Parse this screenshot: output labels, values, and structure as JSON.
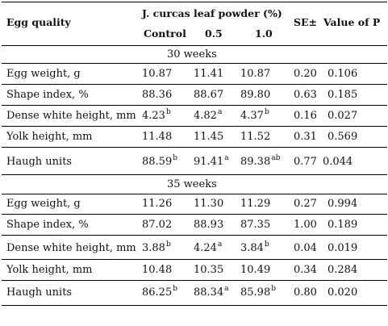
{
  "header": {
    "egg_quality": "Egg quality",
    "group": "J. curcas leaf powder (%)",
    "control": "Control",
    "c05": "0.5",
    "c10": "1.0",
    "se": "SE±",
    "p": "Value of P"
  },
  "sections": [
    {
      "title": "30 weeks",
      "rows": [
        {
          "label": "Egg weight, g",
          "control": "10.87",
          "cs": "",
          "a": "11.41",
          "as": "",
          "b": "10.87",
          "bs": "",
          "se": "0.20",
          "p": "0.106"
        },
        {
          "label": "Shape index, %",
          "control": "88.36",
          "cs": "",
          "a": "88.67",
          "as": "",
          "b": "89.80",
          "bs": "",
          "se": "0.63",
          "p": "0.185"
        },
        {
          "label": "Dense white height, mm",
          "control": "4.23",
          "cs": "b",
          "a": "4.82",
          "as": "a",
          "b": "4.37",
          "bs": "b",
          "se": "0.16",
          "p": "0.027"
        },
        {
          "label": "Yolk height, mm",
          "control": "11.48",
          "cs": "",
          "a": "11.45",
          "as": "",
          "b": "11.52",
          "bs": "",
          "se": "0.31",
          "p": "0.569"
        },
        {
          "label": "Haugh units",
          "control": "88.59",
          "cs": "b",
          "a": "91.41",
          "as": "a",
          "b": "89.38",
          "bs": "ab",
          "se": "0.77",
          "p": "0.044"
        }
      ]
    },
    {
      "title": "35 weeks",
      "rows": [
        {
          "label": "Egg weight, g",
          "control": "11.26",
          "cs": "",
          "a": "11.30",
          "as": "",
          "b": "11.29",
          "bs": "",
          "se": "0.27",
          "p": "0.994"
        },
        {
          "label": "Shape index, %",
          "control": "87.02",
          "cs": "",
          "a": "88.93",
          "as": "",
          "b": "87.35",
          "bs": "",
          "se": "1.00",
          "p": "0.189"
        },
        {
          "label": "Dense white height, mm",
          "control": "3.88",
          "cs": "b",
          "a": "4.24",
          "as": "a",
          "b": "3.84",
          "bs": "b",
          "se": "0.04",
          "p": "0.019"
        },
        {
          "label": "Yolk height, mm",
          "control": "10.48",
          "cs": "",
          "a": "10.35",
          "as": "",
          "b": "10.49",
          "bs": "",
          "se": "0.34",
          "p": "0.284"
        },
        {
          "label": "Haugh units",
          "control": "86.25",
          "cs": "b",
          "a": "88.34",
          "as": "a",
          "b": "85.98",
          "bs": "b",
          "se": "0.80",
          "p": "0.020"
        }
      ]
    }
  ]
}
